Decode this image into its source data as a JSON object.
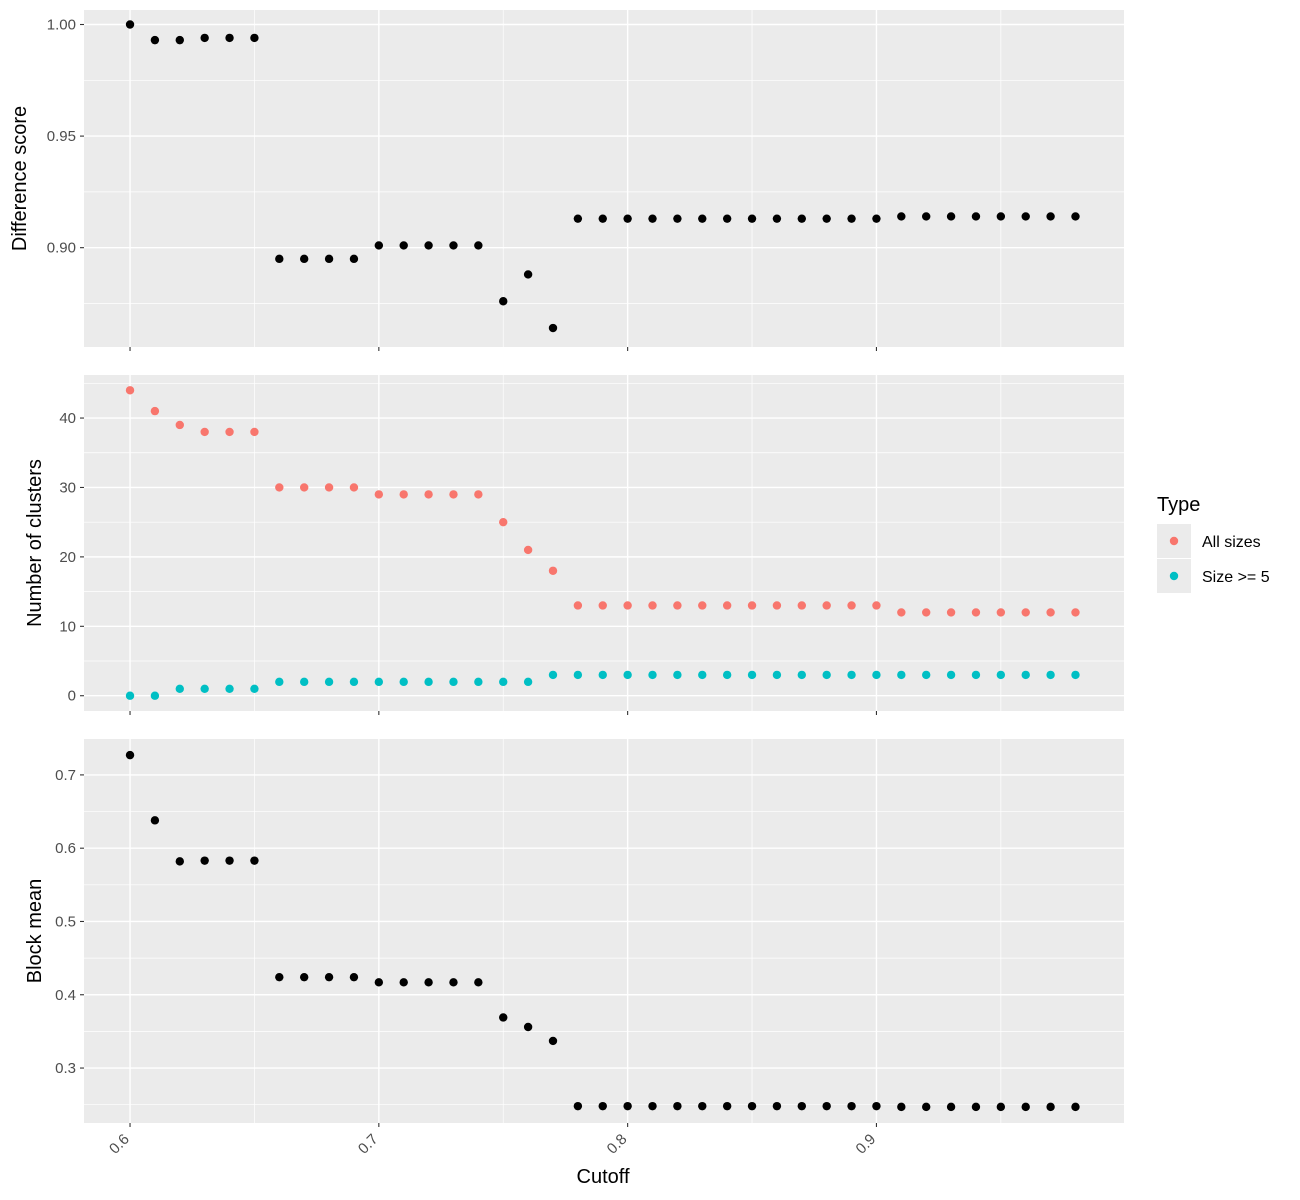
{
  "chart_data": {
    "type": "scatter",
    "xlabel": "Cutoff",
    "x": [
      0.6,
      0.61,
      0.62,
      0.63,
      0.64,
      0.65,
      0.66,
      0.67,
      0.68,
      0.69,
      0.7,
      0.71,
      0.72,
      0.73,
      0.74,
      0.75,
      0.76,
      0.77,
      0.78,
      0.79,
      0.8,
      0.81,
      0.82,
      0.83,
      0.84,
      0.85,
      0.86,
      0.87,
      0.88,
      0.89,
      0.9,
      0.91,
      0.92,
      0.93,
      0.94,
      0.95,
      0.96,
      0.97,
      0.98
    ],
    "xlim": [
      0.5815,
      0.9995
    ],
    "x_ticks": [
      0.6,
      0.7,
      0.8,
      0.9
    ],
    "x_tick_labels": [
      "0.6",
      "0.7",
      "0.8",
      "0.9"
    ],
    "grid": true,
    "legend": {
      "title": "Type",
      "placement": "right",
      "entries": [
        {
          "label": "All sizes",
          "color": "#F8766D"
        },
        {
          "label": "Size >= 5",
          "color": "#00BFC4"
        }
      ]
    },
    "panels": [
      {
        "ylabel": "Difference score",
        "ylim": [
          0.8555,
          1.0065
        ],
        "y_ticks": [
          0.9,
          0.95,
          1.0
        ],
        "y_tick_labels": [
          "0.90",
          "0.95",
          "1.00"
        ],
        "series": [
          {
            "color": "#000000",
            "values": [
              1.0,
              0.993,
              0.993,
              0.994,
              0.994,
              0.994,
              0.895,
              0.895,
              0.895,
              0.895,
              0.901,
              0.901,
              0.901,
              0.901,
              0.901,
              0.876,
              0.888,
              0.864,
              0.913,
              0.913,
              0.913,
              0.913,
              0.913,
              0.913,
              0.913,
              0.913,
              0.913,
              0.913,
              0.913,
              0.913,
              0.913,
              0.914,
              0.914,
              0.914,
              0.914,
              0.914,
              0.914,
              0.914,
              0.914
            ]
          }
        ]
      },
      {
        "ylabel": "Number of clusters",
        "ylim": [
          -2.2,
          46.2
        ],
        "y_ticks": [
          0,
          10,
          20,
          30,
          40
        ],
        "y_tick_labels": [
          "0",
          "10",
          "20",
          "30",
          "40"
        ],
        "series": [
          {
            "name": "All sizes",
            "color": "#F8766D",
            "values": [
              44,
              41,
              39,
              38,
              38,
              38,
              30,
              30,
              30,
              30,
              29,
              29,
              29,
              29,
              29,
              25,
              21,
              18,
              13,
              13,
              13,
              13,
              13,
              13,
              13,
              13,
              13,
              13,
              13,
              13,
              13,
              12,
              12,
              12,
              12,
              12,
              12,
              12,
              12
            ]
          },
          {
            "name": "Size >= 5",
            "color": "#00BFC4",
            "values": [
              0,
              0,
              1,
              1,
              1,
              1,
              2,
              2,
              2,
              2,
              2,
              2,
              2,
              2,
              2,
              2,
              2,
              3,
              3,
              3,
              3,
              3,
              3,
              3,
              3,
              3,
              3,
              3,
              3,
              3,
              3,
              3,
              3,
              3,
              3,
              3,
              3,
              3,
              3
            ]
          }
        ]
      },
      {
        "ylabel": "Block mean",
        "ylim": [
          0.225,
          0.749
        ],
        "y_ticks": [
          0.3,
          0.4,
          0.5,
          0.6,
          0.7
        ],
        "y_tick_labels": [
          "0.3",
          "0.4",
          "0.5",
          "0.6",
          "0.7"
        ],
        "series": [
          {
            "color": "#000000",
            "values": [
              0.727,
              0.638,
              0.582,
              0.583,
              0.583,
              0.583,
              0.424,
              0.424,
              0.424,
              0.424,
              0.417,
              0.417,
              0.417,
              0.417,
              0.417,
              0.369,
              0.356,
              0.337,
              0.248,
              0.248,
              0.248,
              0.248,
              0.248,
              0.248,
              0.248,
              0.248,
              0.248,
              0.248,
              0.248,
              0.248,
              0.248,
              0.247,
              0.247,
              0.247,
              0.247,
              0.247,
              0.247,
              0.247,
              0.247
            ]
          }
        ]
      }
    ]
  }
}
